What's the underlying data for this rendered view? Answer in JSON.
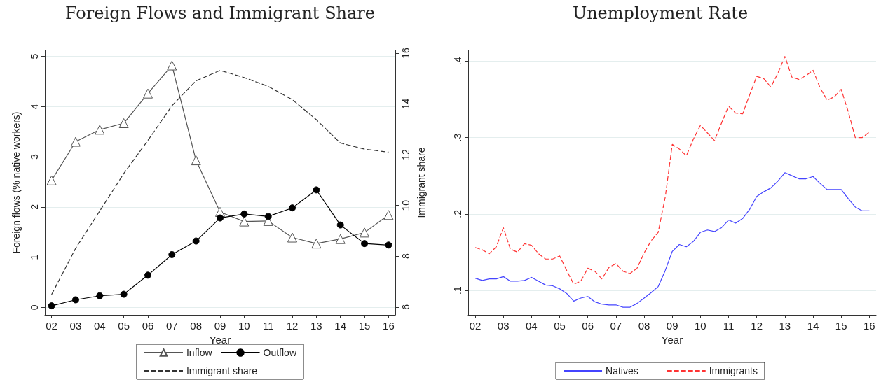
{
  "chart_data": [
    {
      "type": "line",
      "title": "Foreign Flows and Immigrant Share",
      "xlabel": "Year",
      "ylabel": "Foreign flows (% native workers)",
      "y2label": "Immigrant share",
      "x": [
        2,
        3,
        4,
        5,
        6,
        7,
        8,
        9,
        10,
        11,
        12,
        13,
        14,
        15,
        16
      ],
      "xlim": [
        1.72,
        16.28
      ],
      "xticks": [
        {
          "value": 2,
          "label": "02"
        },
        {
          "value": 3,
          "label": "03"
        },
        {
          "value": 4,
          "label": "04"
        },
        {
          "value": 5,
          "label": "05"
        },
        {
          "value": 6,
          "label": "06"
        },
        {
          "value": 7,
          "label": "07"
        },
        {
          "value": 8,
          "label": "08"
        },
        {
          "value": 9,
          "label": "09"
        },
        {
          "value": 10,
          "label": "10"
        },
        {
          "value": 11,
          "label": "11"
        },
        {
          "value": 12,
          "label": "12"
        },
        {
          "value": 13,
          "label": "13"
        },
        {
          "value": 14,
          "label": "14"
        },
        {
          "value": 15,
          "label": "15"
        },
        {
          "value": 16,
          "label": "16"
        }
      ],
      "ylim": [
        -0.15,
        5.12
      ],
      "yticks": [
        0,
        1,
        2,
        3,
        4,
        5
      ],
      "y2lim": [
        5.69,
        16.11
      ],
      "y2ticks": [
        6,
        8,
        10,
        12,
        14,
        16
      ],
      "grid": "y",
      "legend": "bottom",
      "series": [
        {
          "name": "Inflow",
          "color": "#555555",
          "marker": "triangle",
          "line_style": "solid",
          "values": [
            2.53,
            3.3,
            3.54,
            3.67,
            4.26,
            4.82,
            2.93,
            1.9,
            1.71,
            1.72,
            1.39,
            1.27,
            1.36,
            1.49,
            1.84
          ]
        },
        {
          "name": "Outflow",
          "color": "#000000",
          "marker": "circle",
          "line_style": "solid",
          "values": [
            0.03,
            0.15,
            0.23,
            0.26,
            0.64,
            1.05,
            1.32,
            1.78,
            1.86,
            1.81,
            1.98,
            2.34,
            1.64,
            1.27,
            1.24
          ]
        },
        {
          "name": "Immigrant share",
          "color": "#333333",
          "marker": "none",
          "line_style": "dashed",
          "axis": "y2",
          "values": [
            6.49,
            8.31,
            9.78,
            11.26,
            12.56,
            13.93,
            14.91,
            15.32,
            15.04,
            14.69,
            14.17,
            13.38,
            12.46,
            12.22,
            12.1
          ]
        }
      ]
    },
    {
      "type": "line",
      "title": "Unemployment Rate",
      "xlabel": "Year",
      "x": [
        2,
        2.25,
        2.5,
        2.75,
        3,
        3.25,
        3.5,
        3.75,
        4,
        4.25,
        4.5,
        4.75,
        5,
        5.25,
        5.5,
        5.75,
        6,
        6.25,
        6.5,
        6.75,
        7,
        7.25,
        7.5,
        7.75,
        8,
        8.25,
        8.5,
        8.75,
        9,
        9.25,
        9.5,
        9.75,
        10,
        10.25,
        10.5,
        10.75,
        11,
        11.25,
        11.5,
        11.75,
        12,
        12.25,
        12.5,
        12.75,
        13,
        13.25,
        13.5,
        13.75,
        14,
        14.25,
        14.5,
        14.75,
        15,
        15.25,
        15.5,
        15.75,
        16
      ],
      "xlim": [
        1.75,
        16.24
      ],
      "xticks": [
        {
          "value": 2,
          "label": "02"
        },
        {
          "value": 3,
          "label": "03"
        },
        {
          "value": 4,
          "label": "04"
        },
        {
          "value": 5,
          "label": "05"
        },
        {
          "value": 6,
          "label": "06"
        },
        {
          "value": 7,
          "label": "07"
        },
        {
          "value": 8,
          "label": "08"
        },
        {
          "value": 9,
          "label": "09"
        },
        {
          "value": 10,
          "label": "10"
        },
        {
          "value": 11,
          "label": "11"
        },
        {
          "value": 12,
          "label": "12"
        },
        {
          "value": 13,
          "label": "13"
        },
        {
          "value": 14,
          "label": "14"
        },
        {
          "value": 15,
          "label": "15"
        },
        {
          "value": 16,
          "label": "16"
        }
      ],
      "ylim": [
        0.068,
        0.414
      ],
      "yticks": [
        {
          "value": 0.1,
          "label": ".1"
        },
        {
          "value": 0.2,
          "label": ".2"
        },
        {
          "value": 0.3,
          "label": ".3"
        },
        {
          "value": 0.4,
          "label": ".4"
        }
      ],
      "grid": "y",
      "legend": "bottom",
      "series": [
        {
          "name": "Natives",
          "color": "#4444ff",
          "marker": "none",
          "line_style": "solid",
          "values": [
            0.116,
            0.113,
            0.115,
            0.115,
            0.118,
            0.112,
            0.112,
            0.113,
            0.117,
            0.112,
            0.107,
            0.106,
            0.102,
            0.096,
            0.086,
            0.09,
            0.092,
            0.085,
            0.082,
            0.081,
            0.081,
            0.078,
            0.078,
            0.083,
            0.09,
            0.097,
            0.105,
            0.126,
            0.151,
            0.16,
            0.157,
            0.164,
            0.176,
            0.179,
            0.177,
            0.182,
            0.192,
            0.188,
            0.194,
            0.206,
            0.223,
            0.229,
            0.234,
            0.243,
            0.254,
            0.25,
            0.246,
            0.246,
            0.249,
            0.24,
            0.232,
            0.232,
            0.232,
            0.22,
            0.209,
            0.204,
            0.204
          ]
        },
        {
          "name": "Immigrants",
          "color": "#ff3333",
          "marker": "none",
          "line_style": "dashed",
          "values": [
            0.156,
            0.153,
            0.148,
            0.157,
            0.182,
            0.154,
            0.15,
            0.161,
            0.159,
            0.148,
            0.141,
            0.141,
            0.145,
            0.126,
            0.108,
            0.112,
            0.129,
            0.125,
            0.115,
            0.13,
            0.135,
            0.125,
            0.122,
            0.129,
            0.149,
            0.165,
            0.176,
            0.222,
            0.291,
            0.285,
            0.276,
            0.298,
            0.316,
            0.306,
            0.296,
            0.319,
            0.341,
            0.332,
            0.331,
            0.356,
            0.38,
            0.377,
            0.366,
            0.384,
            0.406,
            0.379,
            0.376,
            0.381,
            0.388,
            0.365,
            0.349,
            0.353,
            0.363,
            0.334,
            0.3,
            0.3,
            0.307
          ]
        }
      ]
    }
  ]
}
